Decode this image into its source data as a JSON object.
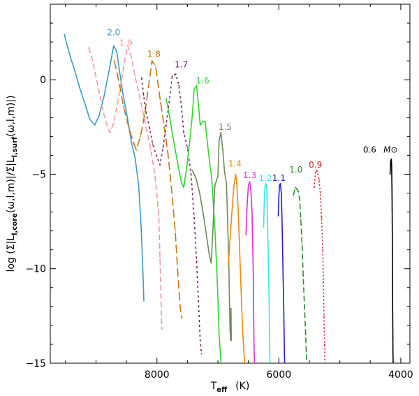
{
  "chart_data": {
    "type": "line",
    "title": "",
    "xlabel": "T_eff (K)",
    "xlabel_main": "T",
    "xlabel_sub": "eff",
    "xlabel_unit": "(K)",
    "ylabel": "log (Σ|L_l,core(ω,l,m)| / Σ|L_l,surf(ω,l,m)|)",
    "ylabel_text": {
      "prefix": "log  (Σ|L",
      "core_sub": "l,core",
      "middle": "(ω,l,m)|/Σ|L",
      "surf_sub": "l,surf",
      "suffix": "(ω,l,m)|)"
    },
    "xlim": [
      9750,
      3850
    ],
    "ylim": [
      -15,
      4
    ],
    "x_ticks": [
      8000,
      6000,
      4000
    ],
    "x_tick_labels": [
      "8000",
      "6000",
      "4000"
    ],
    "y_ticks": [
      0,
      -5,
      -10,
      -15
    ],
    "y_tick_labels": [
      "0",
      "−5",
      "−10",
      "−15"
    ],
    "mass_unit": "M⊙",
    "series": [
      {
        "name": "2.0",
        "color": "#3a9ac9",
        "dash": "",
        "label_pos": [
          8710,
          2.35
        ],
        "x": [
          9520,
          9480,
          9420,
          9350,
          9270,
          9180,
          9100,
          9020,
          8950,
          8870,
          8790,
          8710,
          8660,
          8620,
          8560,
          8480,
          8420,
          8360,
          8300,
          8260,
          8230,
          8215
        ],
        "y": [
          2.4,
          1.9,
          1.2,
          0.5,
          -0.4,
          -1.3,
          -2.1,
          -2.4,
          -1.9,
          -0.9,
          0.4,
          1.8,
          1.5,
          0.6,
          -0.7,
          -2.1,
          -3.3,
          -4.1,
          -5.6,
          -7.8,
          -10.2,
          -11.7
        ]
      },
      {
        "name": "1.9",
        "color": "#f49a9a",
        "dash": "8,4",
        "label_pos": [
          8510,
          1.8
        ],
        "x": [
          9120,
          9070,
          9010,
          8950,
          8890,
          8830,
          8770,
          8710,
          8650,
          8590,
          8530,
          8480,
          8420,
          8360,
          8290,
          8200,
          8100,
          8030,
          7970,
          7950,
          7930,
          7920
        ],
        "y": [
          1.7,
          1.2,
          0.3,
          -0.6,
          -1.6,
          -2.3,
          -2.8,
          -2.3,
          -1.3,
          -0.2,
          1.0,
          1.8,
          1.2,
          0.2,
          -0.8,
          -2.2,
          -3.7,
          -5.1,
          -7.2,
          -9.5,
          -12.0,
          -13.2
        ]
      },
      {
        "name": "1.8",
        "color": "#c8740e",
        "dash": "12,5",
        "label_pos": [
          8050,
          1.2
        ],
        "x": [
          8700,
          8650,
          8600,
          8550,
          8480,
          8410,
          8340,
          8270,
          8200,
          8140,
          8080,
          8020,
          7980,
          7940,
          7880,
          7820,
          7760,
          7700,
          7660,
          7620,
          7600,
          7590
        ],
        "y": [
          1.0,
          0.3,
          -0.5,
          -1.4,
          -2.3,
          -3.1,
          -3.7,
          -3.0,
          -1.8,
          -0.4,
          1.0,
          0.7,
          -0.3,
          -1.2,
          -2.5,
          -3.9,
          -5.8,
          -8.0,
          -10.1,
          -12.0,
          -12.5,
          -12.6
        ]
      },
      {
        "name": "1.7",
        "color": "#7a1d57",
        "dash": "3,4",
        "label_pos": [
          7600,
          0.65
        ],
        "x": [
          8250,
          8220,
          8180,
          8120,
          8070,
          8010,
          7950,
          7900,
          7850,
          7800,
          7750,
          7690,
          7640,
          7600,
          7560,
          7500,
          7440,
          7390,
          7350,
          7320,
          7290,
          7270
        ],
        "y": [
          0.1,
          -0.8,
          -1.7,
          -2.6,
          -3.4,
          -4.0,
          -4.5,
          -3.6,
          -2.4,
          -1.2,
          0.2,
          0.3,
          -0.3,
          -1.4,
          -2.8,
          -3.6,
          -5.0,
          -7.3,
          -9.6,
          -11.7,
          -13.8,
          -14.5
        ]
      },
      {
        "name": "1.6",
        "color": "#2fd62c",
        "dash": "",
        "label_pos": [
          7250,
          -0.2
        ],
        "x": [
          7850,
          7800,
          7750,
          7700,
          7650,
          7600,
          7560,
          7510,
          7460,
          7420,
          7390,
          7350,
          7320,
          7290,
          7250,
          7210,
          7160,
          7100,
          7050,
          7010,
          6980,
          6950
        ],
        "y": [
          -1.0,
          -1.8,
          -2.8,
          -3.7,
          -4.6,
          -5.4,
          -5.7,
          -4.6,
          -3.2,
          -1.9,
          -0.5,
          -0.3,
          -1.3,
          -2.4,
          -2.2,
          -2.2,
          -3.7,
          -5.3,
          -7.9,
          -10.7,
          -13.5,
          -15.0
        ]
      },
      {
        "name": "1.5",
        "color": "#6f8a57",
        "dash": "",
        "label_pos": [
          6880,
          -2.65
        ],
        "x": [
          7420,
          7360,
          7300,
          7240,
          7190,
          7140,
          7110,
          7080,
          7050,
          7000,
          6980,
          6950,
          6920,
          6890,
          6860,
          6840,
          6820,
          6810,
          6800,
          6790,
          6785,
          6780
        ],
        "y": [
          -4.8,
          -5.2,
          -6.0,
          -7.1,
          -8.2,
          -9.3,
          -9.7,
          -7.8,
          -5.6,
          -5.1,
          -3.2,
          -2.8,
          -3.7,
          -4.9,
          -5.5,
          -7.5,
          -10.0,
          -11.8,
          -13.3,
          -13.8,
          -12.1,
          -13.8
        ]
      },
      {
        "name": "1.4",
        "color": "#f0880f",
        "dash": "",
        "label_pos": [
          6720,
          -4.6
        ],
        "x": [
          6830,
          6800,
          6770,
          6740,
          6710,
          6690,
          6670,
          6650,
          6630,
          6610,
          6590,
          6570,
          6560
        ],
        "y": [
          -9.8,
          -8.4,
          -7.0,
          -5.7,
          -5.0,
          -5.5,
          -6.7,
          -8.4,
          -10.2,
          -12.0,
          -13.5,
          -14.6,
          -15.0
        ]
      },
      {
        "name": "1.3",
        "color": "#e02bd6",
        "dash": "",
        "label_pos": [
          6480,
          -5.2
        ],
        "x": [
          6540,
          6520,
          6500,
          6480,
          6460,
          6440,
          6430,
          6420,
          6415,
          6410,
          6405,
          6400
        ],
        "y": [
          -8.2,
          -6.6,
          -5.6,
          -5.4,
          -5.8,
          -7.0,
          -8.6,
          -10.3,
          -12.0,
          -13.5,
          -14.5,
          -15.0
        ]
      },
      {
        "name": "1.2",
        "color": "#35e6e6",
        "dash": "",
        "label_pos": [
          6220,
          -5.35
        ],
        "x": [
          6250,
          6240,
          6230,
          6215,
          6200,
          6190,
          6180,
          6170,
          6160,
          6155,
          6150,
          6145
        ],
        "y": [
          -7.8,
          -6.5,
          -5.7,
          -5.5,
          -5.7,
          -6.8,
          -8.4,
          -10.1,
          -11.8,
          -13.3,
          -14.4,
          -15.0
        ]
      },
      {
        "name": "1.1",
        "color": "#2020c8",
        "dash": "",
        "label_pos": [
          6000,
          -5.35
        ],
        "x": [
          6010,
          6000,
          5990,
          5975,
          5960,
          5950,
          5940,
          5930,
          5920,
          5915,
          5910,
          5905
        ],
        "y": [
          -7.2,
          -6.2,
          -5.6,
          -5.5,
          -6.0,
          -7.2,
          -8.8,
          -10.4,
          -12.0,
          -13.3,
          -14.3,
          -15.0
        ]
      },
      {
        "name": "1.0",
        "color": "#2a8e2a",
        "dash": "8,4",
        "label_pos": [
          5720,
          -4.9
        ],
        "x": [
          5760,
          5730,
          5700,
          5680,
          5660,
          5640,
          5620,
          5600,
          5580,
          5560,
          5550,
          5540
        ],
        "y": [
          -6.1,
          -5.7,
          -5.8,
          -5.9,
          -6.3,
          -7.4,
          -8.7,
          -10.4,
          -12.0,
          -13.5,
          -14.4,
          -15.0
        ]
      },
      {
        "name": "0.9",
        "color": "#d11c1c",
        "dash": "2,3",
        "label_pos": [
          5400,
          -4.65
        ],
        "x": [
          5420,
          5400,
          5380,
          5360,
          5340,
          5320,
          5300,
          5280,
          5270,
          5260,
          5250,
          5245
        ],
        "y": [
          -5.7,
          -4.9,
          -4.8,
          -5.0,
          -5.3,
          -6.0,
          -7.3,
          -9.0,
          -10.7,
          -12.5,
          -14.0,
          -15.0
        ]
      },
      {
        "name": "0.6",
        "color": "#000000",
        "dash": "",
        "label_pos": [
          4510,
          -3.85
        ],
        "x": [
          4175,
          4165,
          4155,
          4150,
          4145,
          4140,
          4138,
          4135,
          4133,
          4130,
          4128,
          4125
        ],
        "y": [
          -5.0,
          -4.3,
          -4.2,
          -4.5,
          -5.8,
          -7.6,
          -9.0,
          -10.8,
          -12.3,
          -13.6,
          -14.4,
          -15.0
        ]
      }
    ]
  }
}
